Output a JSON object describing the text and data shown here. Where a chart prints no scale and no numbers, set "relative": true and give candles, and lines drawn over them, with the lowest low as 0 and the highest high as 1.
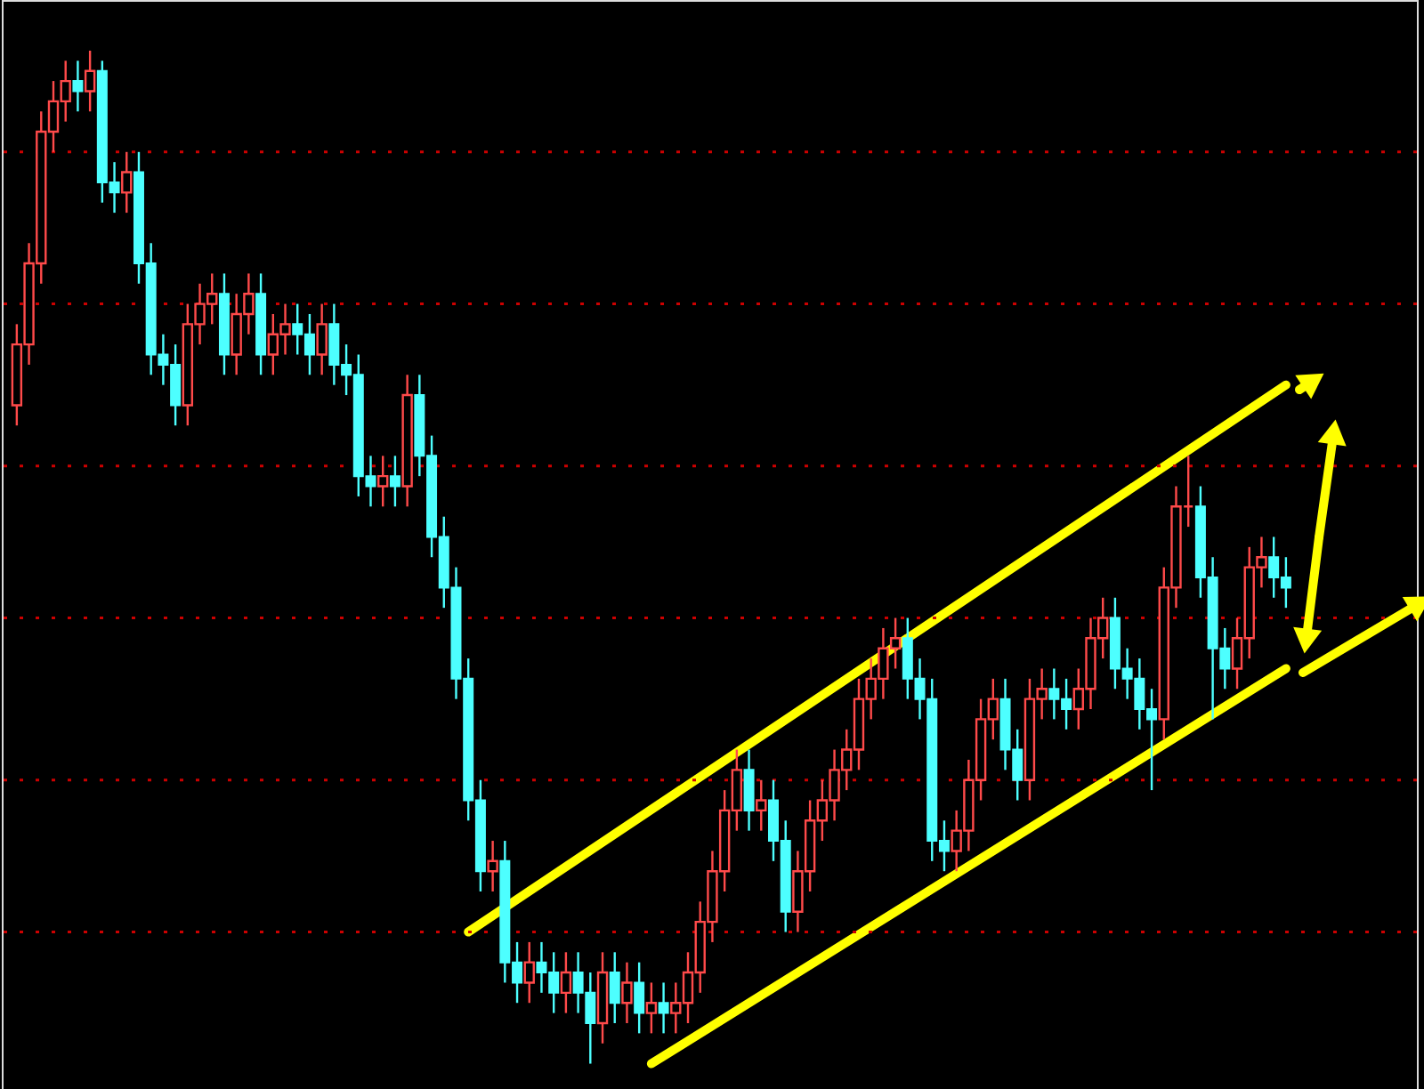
{
  "chart_data": {
    "type": "candlestick",
    "relative": true,
    "categories": [
      null,
      null,
      null,
      null,
      null,
      null,
      null,
      null,
      null,
      null,
      null,
      null,
      null,
      null,
      null,
      null,
      null,
      null,
      null,
      null,
      null,
      null,
      null,
      null,
      null,
      null,
      null,
      null,
      null,
      null,
      null,
      null,
      null,
      null,
      null,
      null,
      null,
      null,
      null,
      null,
      null,
      null,
      null,
      null,
      null,
      null,
      null,
      null,
      null,
      null,
      null,
      null,
      null,
      null,
      null,
      null,
      null,
      null,
      null,
      null,
      null,
      null,
      null,
      null,
      null,
      null,
      null,
      null,
      null,
      null,
      null,
      null,
      null,
      null,
      null,
      null,
      null,
      null,
      null,
      null,
      null,
      null,
      null,
      null,
      null,
      null,
      null,
      null,
      null,
      null,
      null,
      null,
      null,
      null,
      null,
      null,
      null,
      null,
      null,
      null,
      null,
      null,
      null,
      null,
      null
    ],
    "colors": [
      "#ff4a4a",
      "#ff4a4a",
      "#ff4a4a",
      "#ff4a4a",
      "#ff4a4a",
      "#4dffff",
      "#ff4a4a",
      "#4dffff",
      "#4dffff",
      "#ff4a4a",
      "#4dffff",
      "#4dffff",
      "#4dffff",
      "#4dffff",
      "#ff4a4a",
      "#ff4a4a",
      "#ff4a4a",
      "#4dffff",
      "#ff4a4a",
      "#ff4a4a",
      "#4dffff",
      "#ff4a4a",
      "#ff4a4a",
      "#4dffff",
      "#4dffff",
      "#ff4a4a",
      "#4dffff",
      "#4dffff",
      "#4dffff",
      "#4dffff",
      "#ff4a4a",
      "#4dffff",
      "#ff4a4a",
      "#4dffff",
      "#4dffff",
      "#4dffff",
      "#4dffff",
      "#4dffff",
      "#4dffff",
      "#ff4a4a",
      "#4dffff",
      "#4dffff",
      "#ff4a4a",
      "#4dffff",
      "#4dffff",
      "#ff4a4a",
      "#4dffff",
      "#4dffff",
      "#ff4a4a",
      "#4dffff",
      "#ff4a4a",
      "#4dffff",
      "#ff4a4a",
      "#4dffff",
      "#ff4a4a",
      "#ff4a4a",
      "#ff4a4a",
      "#ff4a4a",
      "#ff4a4a",
      "#ff4a4a",
      "#4dffff",
      "#ff4a4a",
      "#4dffff",
      "#4dffff",
      "#ff4a4a",
      "#ff4a4a",
      "#ff4a4a",
      "#ff4a4a",
      "#ff4a4a",
      "#ff4a4a",
      "#ff4a4a",
      "#ff4a4a",
      "#ff4a4a",
      "#4dffff",
      "#4dffff",
      "#4dffff",
      "#4dffff",
      "#ff4a4a",
      "#ff4a4a",
      "#ff4a4a",
      "#ff4a4a",
      "#4dffff",
      "#4dffff",
      "#ff4a4a",
      "#ff4a4a",
      "#4dffff",
      "#4dffff",
      "#ff4a4a",
      "#ff4a4a",
      "#ff4a4a",
      "#4dffff",
      "#4dffff",
      "#4dffff",
      "#4dffff",
      "#ff4a4a",
      "#ff4a4a",
      "#ff4a4a",
      "#4dffff",
      "#4dffff",
      "#4dffff",
      "#ff4a4a",
      "#ff4a4a",
      "#ff4a4a",
      "#4dffff",
      "#4dffff"
    ],
    "ohlc": [
      [
        0.65,
        0.73,
        0.63,
        0.71
      ],
      [
        0.71,
        0.81,
        0.69,
        0.79
      ],
      [
        0.79,
        0.94,
        0.77,
        0.92
      ],
      [
        0.92,
        0.97,
        0.9,
        0.95
      ],
      [
        0.95,
        0.99,
        0.93,
        0.97
      ],
      [
        0.97,
        0.99,
        0.94,
        0.96
      ],
      [
        0.96,
        1.0,
        0.94,
        0.98
      ],
      [
        0.98,
        0.99,
        0.85,
        0.87
      ],
      [
        0.87,
        0.89,
        0.84,
        0.86
      ],
      [
        0.86,
        0.9,
        0.84,
        0.88
      ],
      [
        0.88,
        0.9,
        0.77,
        0.79
      ],
      [
        0.79,
        0.81,
        0.68,
        0.7
      ],
      [
        0.7,
        0.72,
        0.67,
        0.69
      ],
      [
        0.69,
        0.71,
        0.63,
        0.65
      ],
      [
        0.65,
        0.75,
        0.63,
        0.73
      ],
      [
        0.73,
        0.77,
        0.71,
        0.75
      ],
      [
        0.75,
        0.78,
        0.73,
        0.76
      ],
      [
        0.76,
        0.78,
        0.68,
        0.7
      ],
      [
        0.7,
        0.76,
        0.68,
        0.74
      ],
      [
        0.74,
        0.78,
        0.72,
        0.76
      ],
      [
        0.76,
        0.78,
        0.68,
        0.7
      ],
      [
        0.7,
        0.74,
        0.68,
        0.72
      ],
      [
        0.72,
        0.75,
        0.7,
        0.73
      ],
      [
        0.73,
        0.75,
        0.7,
        0.72
      ],
      [
        0.72,
        0.74,
        0.68,
        0.7
      ],
      [
        0.7,
        0.75,
        0.68,
        0.73
      ],
      [
        0.73,
        0.75,
        0.67,
        0.69
      ],
      [
        0.69,
        0.71,
        0.66,
        0.68
      ],
      [
        0.68,
        0.7,
        0.56,
        0.58
      ],
      [
        0.58,
        0.6,
        0.55,
        0.57
      ],
      [
        0.57,
        0.6,
        0.55,
        0.58
      ],
      [
        0.58,
        0.6,
        0.55,
        0.57
      ],
      [
        0.57,
        0.68,
        0.55,
        0.66
      ],
      [
        0.66,
        0.68,
        0.58,
        0.6
      ],
      [
        0.6,
        0.62,
        0.5,
        0.52
      ],
      [
        0.52,
        0.54,
        0.45,
        0.47
      ],
      [
        0.47,
        0.49,
        0.36,
        0.38
      ],
      [
        0.38,
        0.4,
        0.24,
        0.26
      ],
      [
        0.26,
        0.28,
        0.17,
        0.19
      ],
      [
        0.19,
        0.22,
        0.17,
        0.2
      ],
      [
        0.2,
        0.22,
        0.08,
        0.1
      ],
      [
        0.1,
        0.12,
        0.06,
        0.08
      ],
      [
        0.08,
        0.12,
        0.06,
        0.1
      ],
      [
        0.1,
        0.12,
        0.07,
        0.09
      ],
      [
        0.09,
        0.11,
        0.05,
        0.07
      ],
      [
        0.07,
        0.11,
        0.05,
        0.09
      ],
      [
        0.09,
        0.11,
        0.05,
        0.07
      ],
      [
        0.07,
        0.09,
        0.0,
        0.04
      ],
      [
        0.04,
        0.11,
        0.02,
        0.09
      ],
      [
        0.09,
        0.11,
        0.04,
        0.06
      ],
      [
        0.06,
        0.1,
        0.04,
        0.08
      ],
      [
        0.08,
        0.1,
        0.03,
        0.05
      ],
      [
        0.05,
        0.08,
        0.03,
        0.06
      ],
      [
        0.06,
        0.08,
        0.03,
        0.05
      ],
      [
        0.05,
        0.08,
        0.03,
        0.06
      ],
      [
        0.06,
        0.11,
        0.04,
        0.09
      ],
      [
        0.09,
        0.16,
        0.07,
        0.14
      ],
      [
        0.14,
        0.21,
        0.12,
        0.19
      ],
      [
        0.19,
        0.27,
        0.17,
        0.25
      ],
      [
        0.25,
        0.31,
        0.23,
        0.29
      ],
      [
        0.29,
        0.31,
        0.23,
        0.25
      ],
      [
        0.25,
        0.28,
        0.23,
        0.26
      ],
      [
        0.26,
        0.28,
        0.2,
        0.22
      ],
      [
        0.22,
        0.24,
        0.13,
        0.15
      ],
      [
        0.15,
        0.21,
        0.13,
        0.19
      ],
      [
        0.19,
        0.26,
        0.17,
        0.24
      ],
      [
        0.24,
        0.28,
        0.22,
        0.26
      ],
      [
        0.26,
        0.31,
        0.24,
        0.29
      ],
      [
        0.29,
        0.33,
        0.27,
        0.31
      ],
      [
        0.31,
        0.38,
        0.29,
        0.36
      ],
      [
        0.36,
        0.4,
        0.34,
        0.38
      ],
      [
        0.38,
        0.43,
        0.36,
        0.41
      ],
      [
        0.41,
        0.44,
        0.39,
        0.42
      ],
      [
        0.42,
        0.44,
        0.36,
        0.38
      ],
      [
        0.38,
        0.4,
        0.34,
        0.36
      ],
      [
        0.36,
        0.38,
        0.2,
        0.22
      ],
      [
        0.22,
        0.24,
        0.19,
        0.21
      ],
      [
        0.21,
        0.25,
        0.19,
        0.23
      ],
      [
        0.23,
        0.3,
        0.21,
        0.28
      ],
      [
        0.28,
        0.36,
        0.26,
        0.34
      ],
      [
        0.34,
        0.38,
        0.32,
        0.36
      ],
      [
        0.36,
        0.38,
        0.29,
        0.31
      ],
      [
        0.31,
        0.33,
        0.26,
        0.28
      ],
      [
        0.28,
        0.38,
        0.26,
        0.36
      ],
      [
        0.36,
        0.39,
        0.34,
        0.37
      ],
      [
        0.37,
        0.39,
        0.34,
        0.36
      ],
      [
        0.36,
        0.38,
        0.33,
        0.35
      ],
      [
        0.35,
        0.39,
        0.33,
        0.37
      ],
      [
        0.37,
        0.44,
        0.35,
        0.42
      ],
      [
        0.42,
        0.46,
        0.4,
        0.44
      ],
      [
        0.44,
        0.46,
        0.37,
        0.39
      ],
      [
        0.39,
        0.41,
        0.36,
        0.38
      ],
      [
        0.38,
        0.4,
        0.33,
        0.35
      ],
      [
        0.35,
        0.37,
        0.27,
        0.34
      ],
      [
        0.34,
        0.49,
        0.32,
        0.47
      ],
      [
        0.47,
        0.57,
        0.45,
        0.55
      ],
      [
        0.55,
        0.6,
        0.53,
        0.55
      ],
      [
        0.55,
        0.57,
        0.46,
        0.48
      ],
      [
        0.48,
        0.5,
        0.34,
        0.41
      ],
      [
        0.41,
        0.43,
        0.37,
        0.39
      ],
      [
        0.39,
        0.44,
        0.37,
        0.42
      ],
      [
        0.42,
        0.51,
        0.4,
        0.49
      ],
      [
        0.49,
        0.52,
        0.47,
        0.5
      ],
      [
        0.5,
        0.52,
        0.46,
        0.48
      ],
      [
        0.48,
        0.5,
        0.45,
        0.47
      ]
    ],
    "series": [
      {
        "type": "line",
        "color": "#ffff00",
        "values": [
          null,
          null,
          null,
          null,
          null,
          null,
          null,
          null,
          null,
          null,
          null,
          null,
          null,
          null,
          null,
          null,
          null,
          null,
          null,
          null,
          null,
          null,
          null,
          null,
          null,
          null,
          null,
          null,
          null,
          null,
          null,
          null,
          null,
          null,
          null,
          null,
          null,
          0.13,
          null,
          null,
          null,
          null,
          null,
          null,
          null,
          null,
          null,
          null,
          null,
          null,
          null,
          null,
          null,
          null,
          null,
          null,
          null,
          null,
          null,
          null,
          null,
          null,
          null,
          null,
          null,
          null,
          null,
          null,
          null,
          null,
          null,
          null,
          null,
          null,
          null,
          null,
          null,
          null,
          null,
          null,
          null,
          null,
          null,
          null,
          null,
          null,
          null,
          null,
          null,
          null,
          null,
          null,
          null,
          null,
          null,
          null,
          null,
          null,
          null,
          null,
          null,
          null,
          null,
          null,
          0.67
        ]
      },
      {
        "type": "line",
        "color": "#ffff00",
        "values": [
          null,
          null,
          null,
          null,
          null,
          null,
          null,
          null,
          null,
          null,
          null,
          null,
          null,
          null,
          null,
          null,
          null,
          null,
          null,
          null,
          null,
          null,
          null,
          null,
          null,
          null,
          null,
          null,
          null,
          null,
          null,
          null,
          null,
          null,
          null,
          null,
          null,
          null,
          null,
          null,
          null,
          null,
          null,
          null,
          null,
          null,
          null,
          null,
          null,
          null,
          null,
          null,
          0.0,
          null,
          null,
          null,
          null,
          null,
          null,
          null,
          null,
          null,
          null,
          null,
          null,
          null,
          null,
          null,
          null,
          null,
          null,
          null,
          null,
          null,
          null,
          null,
          null,
          null,
          null,
          null,
          null,
          null,
          null,
          null,
          null,
          null,
          null,
          null,
          null,
          null,
          null,
          null,
          null,
          null,
          null,
          null,
          null,
          null,
          null,
          null,
          null,
          null,
          null,
          null,
          0.39
        ]
      }
    ],
    "ref_lines": [
      {
        "axis": "y",
        "value": 0.9,
        "color": "#cc0000",
        "line_style": "dotted"
      },
      {
        "axis": "y",
        "value": 0.75,
        "color": "#cc0000",
        "line_style": "dotted"
      },
      {
        "axis": "y",
        "value": 0.59,
        "color": "#cc0000",
        "line_style": "dotted"
      },
      {
        "axis": "y",
        "value": 0.44,
        "color": "#cc0000",
        "line_style": "dotted"
      },
      {
        "axis": "y",
        "value": 0.28,
        "color": "#cc0000",
        "line_style": "dotted"
      },
      {
        "axis": "y",
        "value": 0.13,
        "color": "#cc0000",
        "line_style": "dotted"
      }
    ]
  }
}
